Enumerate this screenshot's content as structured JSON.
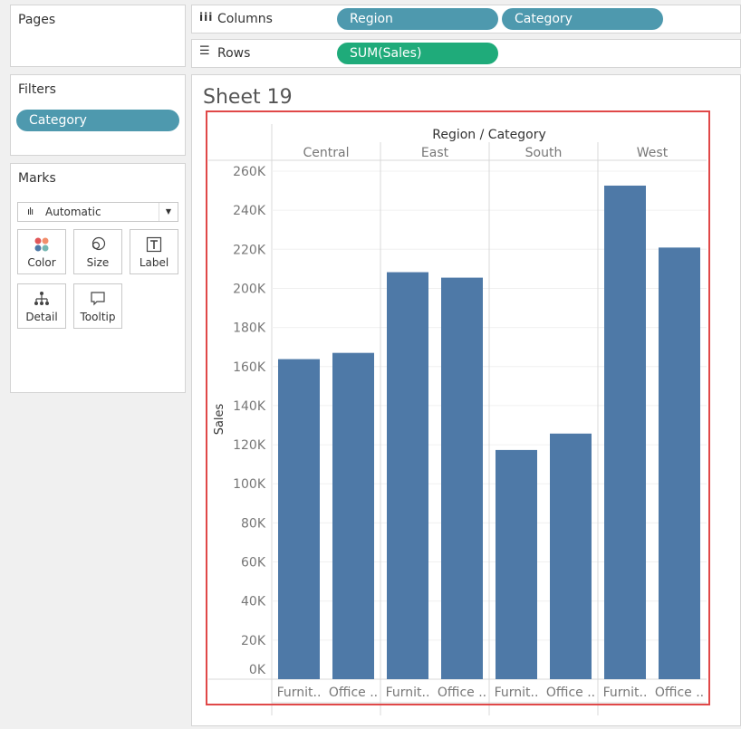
{
  "pages": {
    "title": "Pages"
  },
  "filters": {
    "title": "Filters",
    "pills": [
      "Category"
    ]
  },
  "marks": {
    "title": "Marks",
    "mark_type": "Automatic",
    "cards": [
      "Color",
      "Size",
      "Label",
      "Detail",
      "Tooltip"
    ]
  },
  "shelves": {
    "columns": {
      "label": "Columns",
      "pills": [
        "Region",
        "Category"
      ]
    },
    "rows": {
      "label": "Rows",
      "pills": [
        "SUM(Sales)"
      ]
    }
  },
  "sheet": {
    "title": "Sheet 19"
  },
  "colors": {
    "bar": "#4e79a7",
    "dimension_pill": "#4e99ae",
    "measure_pill": "#1fab7a",
    "highlight": "#e04848"
  },
  "chart_data": {
    "type": "bar",
    "title": "Region / Category",
    "ylabel": "Sales",
    "ylim": [
      0,
      260000
    ],
    "yticks": [
      "0K",
      "20K",
      "40K",
      "60K",
      "80K",
      "100K",
      "120K",
      "140K",
      "160K",
      "180K",
      "200K",
      "220K",
      "240K",
      "260K"
    ],
    "groups": [
      "Central",
      "East",
      "South",
      "West"
    ],
    "categories": [
      "Furnit..",
      "Office .."
    ],
    "series": [
      {
        "group": "Central",
        "values": [
          163800,
          167000
        ]
      },
      {
        "group": "East",
        "values": [
          208300,
          205500
        ]
      },
      {
        "group": "South",
        "values": [
          117300,
          125700
        ]
      },
      {
        "group": "West",
        "values": [
          252600,
          220900
        ]
      }
    ]
  }
}
